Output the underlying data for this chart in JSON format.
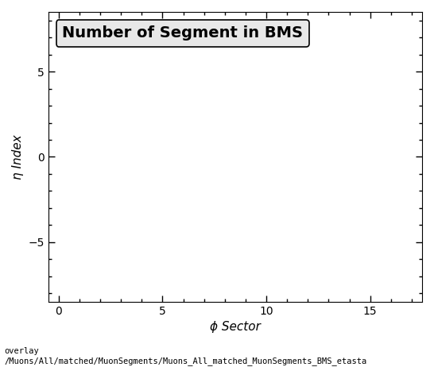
{
  "title": "Number of Segment in BMS",
  "xlabel": "ϕ Sector",
  "ylabel": "η Index",
  "xlim": [
    -0.5,
    17.5
  ],
  "ylim": [
    -8.5,
    8.5
  ],
  "xticks": [
    0,
    5,
    10,
    15
  ],
  "yticks": [
    -5,
    0,
    5
  ],
  "background_color": "#ffffff",
  "plot_bg_color": "#ffffff",
  "caption_line1": "overlay",
  "caption_line2": "/Muons/All/matched/MuonSegments/Muons_All_matched_MuonSegments_BMS_etasta",
  "title_fontsize": 14,
  "axis_label_fontsize": 11,
  "tick_fontsize": 10,
  "caption_fontsize": 7.5,
  "title_box_facecolor": "#e8e8e8",
  "title_box_edgecolor": "#000000"
}
